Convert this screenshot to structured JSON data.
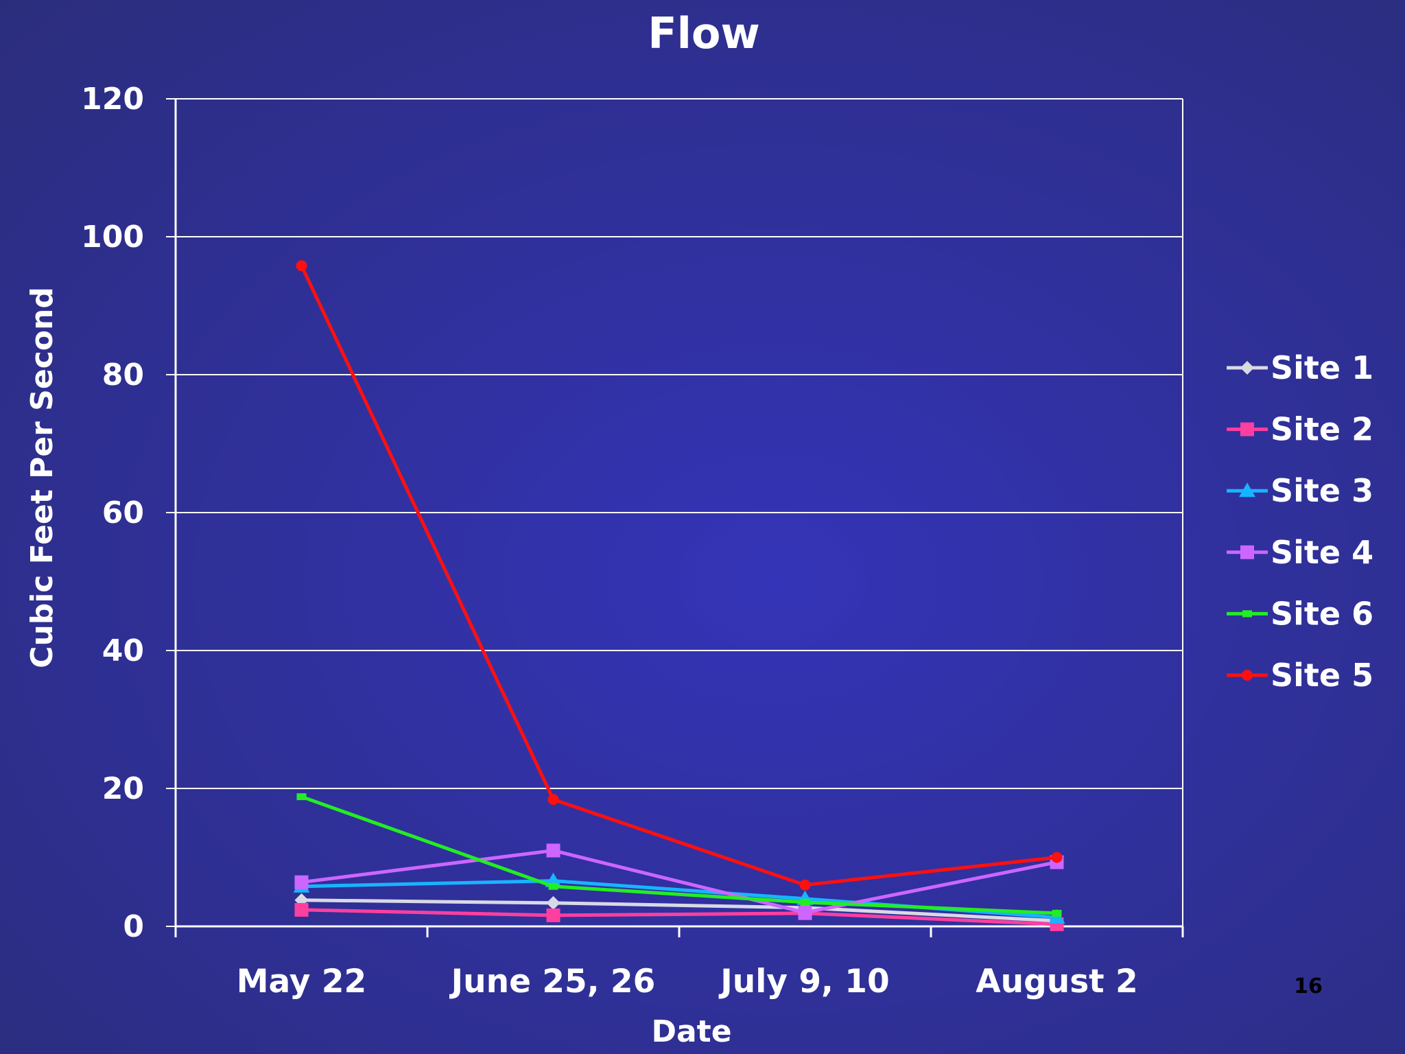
{
  "slide": {
    "number": "16"
  },
  "chart_data": {
    "type": "line",
    "title": "Flow",
    "xlabel": "Date",
    "ylabel": "Cubic Feet Per Second",
    "categories": [
      "May 22",
      "June 25, 26",
      "July 9, 10",
      "August 2"
    ],
    "ylim": [
      0,
      120
    ],
    "yticks": [
      0,
      20,
      40,
      60,
      80,
      100,
      120
    ],
    "grid": true,
    "legend_position": "right",
    "series": [
      {
        "name": "Site 1",
        "values": [
          3.8,
          3.4,
          2.7,
          0.8
        ],
        "color": "#d9d9e6",
        "marker": "diamond"
      },
      {
        "name": "Site 2",
        "values": [
          2.4,
          1.6,
          1.9,
          0.3
        ],
        "color": "#ff3fa0",
        "marker": "square"
      },
      {
        "name": "Site 3",
        "values": [
          5.8,
          6.6,
          4.0,
          1.3
        ],
        "color": "#18b4ff",
        "marker": "triangle"
      },
      {
        "name": "Site 4",
        "values": [
          6.4,
          11.0,
          2.0,
          9.3
        ],
        "color": "#cc66ff",
        "marker": "square"
      },
      {
        "name": "Site 6",
        "values": [
          18.8,
          5.8,
          3.5,
          1.9
        ],
        "color": "#22ee22",
        "marker": "bar"
      },
      {
        "name": "Site 5",
        "values": [
          95.8,
          18.4,
          6.0,
          10.0
        ],
        "color": "#ff1010",
        "marker": "circle"
      }
    ]
  }
}
